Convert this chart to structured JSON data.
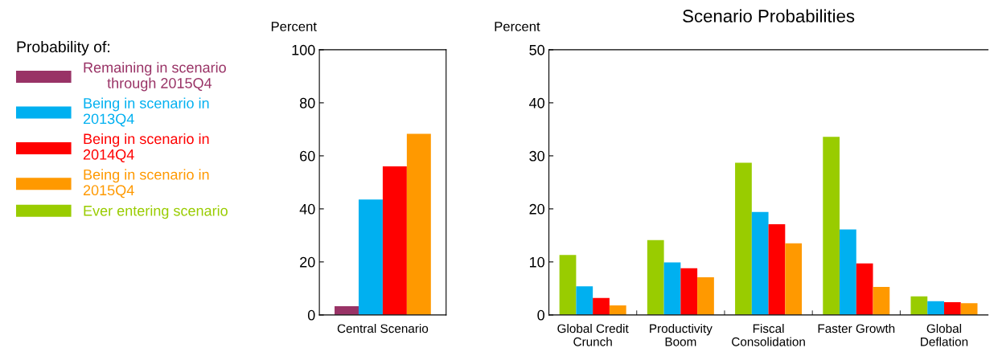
{
  "chart_data": [
    {
      "type": "bar",
      "legend_title": "Probability of:",
      "legend": "left",
      "ylabel": "Percent",
      "categories": [
        "Central Scenario"
      ],
      "ylim": [
        0,
        100
      ],
      "yticks": [
        0,
        20,
        40,
        60,
        80,
        100
      ],
      "grid": false,
      "series": [
        {
          "name": "Remaining in scenario\n      through 2015Q4",
          "color": "#993366",
          "values": [
            3.3
          ]
        },
        {
          "name": "Being in scenario in\n2013Q4",
          "color": "#00b0f0",
          "values": [
            43.5
          ]
        },
        {
          "name": "Being in scenario in\n2014Q4",
          "color": "#ff0000",
          "values": [
            56
          ]
        },
        {
          "name": "Being in scenario in\n2015Q4",
          "color": "#ff9900",
          "values": [
            68.3
          ]
        }
      ]
    },
    {
      "type": "bar",
      "title": "Scenario Probabilities",
      "ylabel": "Percent",
      "legend": "left",
      "categories": [
        "Global Credit\nCrunch",
        "Productivity\nBoom",
        "Fiscal\nConsolidation",
        "Faster Growth",
        "Global\nDeflation"
      ],
      "ylim": [
        0,
        50
      ],
      "yticks": [
        0,
        10,
        20,
        30,
        40,
        50
      ],
      "grid": false,
      "series": [
        {
          "name": "Ever entering scenario",
          "color": "#99cc00",
          "values": [
            11.3,
            14.1,
            28.7,
            33.6,
            3.5
          ]
        },
        {
          "name": "Being in scenario in\n2013Q4",
          "color": "#00b0f0",
          "values": [
            5.4,
            9.9,
            19.4,
            16.1,
            2.6
          ]
        },
        {
          "name": "Being in scenario in\n2014Q4",
          "color": "#ff0000",
          "values": [
            3.2,
            8.8,
            17.1,
            9.7,
            2.4
          ]
        },
        {
          "name": "Being in scenario in\n2015Q4",
          "color": "#ff9900",
          "values": [
            1.8,
            7.1,
            13.5,
            5.3,
            2.2
          ]
        }
      ]
    }
  ]
}
